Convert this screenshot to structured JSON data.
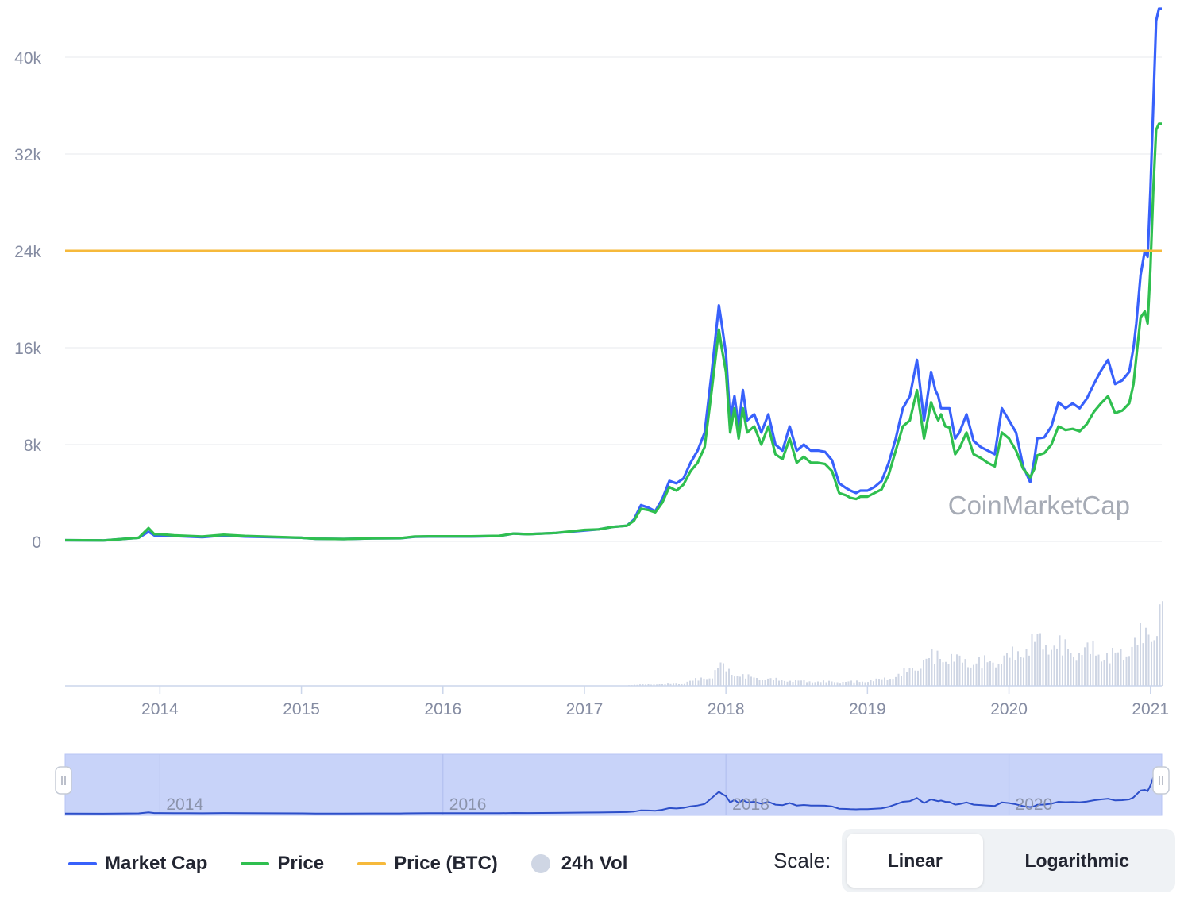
{
  "watermark": "CoinMarketCap",
  "legend": [
    {
      "label": "Market Cap",
      "color": "#3861fb",
      "kind": "line"
    },
    {
      "label": "Price",
      "color": "#2fbf4f",
      "kind": "line"
    },
    {
      "label": "Price (BTC)",
      "color": "#f6b93b",
      "kind": "line"
    },
    {
      "label": "24h Vol",
      "color": "#cfd6e4",
      "kind": "dot"
    }
  ],
  "scale": {
    "label": "Scale:",
    "options": [
      "Linear",
      "Logarithmic"
    ],
    "selected": "Linear"
  },
  "colors": {
    "market_cap": "#3861fb",
    "price": "#2fbf4f",
    "price_btc": "#f6b93b",
    "volume": "#cfd6e4",
    "navigator_fill": "#c8d3f9",
    "navigator_line": "#2d4fc9",
    "grid": "#eceef1",
    "axis_text": "#858ca2"
  },
  "chart_data": {
    "type": "line",
    "title": "",
    "xlabel": "",
    "ylabel": "",
    "xlim": [
      2013.33,
      2021.08
    ],
    "ylim": [
      0,
      40000
    ],
    "y_ticks": [
      "0",
      "8k",
      "16k",
      "24k",
      "32k",
      "40k"
    ],
    "y_tick_values": [
      0,
      8000,
      16000,
      24000,
      32000,
      40000
    ],
    "x_ticks": [
      "2014",
      "2015",
      "2016",
      "2017",
      "2018",
      "2019",
      "2020",
      "2021"
    ],
    "navigator_x_ticks": [
      "2014",
      "2016",
      "2018",
      "2020"
    ],
    "grid": true,
    "legend_position": "bottom",
    "series": [
      {
        "name": "Market Cap",
        "x": [
          2013.33,
          2013.6,
          2013.85,
          2013.92,
          2013.96,
          2014.0,
          2014.1,
          2014.2,
          2014.3,
          2014.45,
          2014.6,
          2014.8,
          2015.0,
          2015.1,
          2015.3,
          2015.5,
          2015.7,
          2015.8,
          2015.9,
          2016.0,
          2016.2,
          2016.4,
          2016.5,
          2016.6,
          2016.8,
          2017.0,
          2017.1,
          2017.2,
          2017.3,
          2017.35,
          2017.4,
          2017.45,
          2017.5,
          2017.55,
          2017.6,
          2017.65,
          2017.7,
          2017.75,
          2017.8,
          2017.85,
          2017.9,
          2017.95,
          2017.97,
          2018.0,
          2018.03,
          2018.06,
          2018.09,
          2018.12,
          2018.15,
          2018.2,
          2018.25,
          2018.3,
          2018.35,
          2018.4,
          2018.45,
          2018.5,
          2018.55,
          2018.6,
          2018.65,
          2018.7,
          2018.75,
          2018.8,
          2018.85,
          2018.88,
          2018.92,
          2018.95,
          2019.0,
          2019.05,
          2019.1,
          2019.15,
          2019.2,
          2019.25,
          2019.3,
          2019.35,
          2019.4,
          2019.45,
          2019.48,
          2019.5,
          2019.52,
          2019.55,
          2019.58,
          2019.62,
          2019.65,
          2019.7,
          2019.75,
          2019.8,
          2019.85,
          2019.9,
          2019.95,
          2020.0,
          2020.05,
          2020.1,
          2020.15,
          2020.18,
          2020.2,
          2020.25,
          2020.3,
          2020.35,
          2020.4,
          2020.45,
          2020.5,
          2020.55,
          2020.6,
          2020.65,
          2020.7,
          2020.75,
          2020.8,
          2020.85,
          2020.88,
          2020.9,
          2020.93,
          2020.96,
          2020.98,
          2021.0,
          2021.02,
          2021.04,
          2021.06,
          2021.08
        ],
        "values": [
          100,
          80,
          300,
          800,
          500,
          500,
          450,
          400,
          350,
          500,
          400,
          350,
          300,
          220,
          200,
          250,
          260,
          380,
          400,
          400,
          400,
          450,
          650,
          600,
          700,
          900,
          1000,
          1200,
          1300,
          1800,
          3000,
          2800,
          2500,
          3500,
          5000,
          4800,
          5200,
          6500,
          7500,
          9000,
          14000,
          19500,
          18000,
          15500,
          10000,
          12000,
          9500,
          12500,
          10000,
          10500,
          9000,
          10500,
          8000,
          7500,
          9500,
          7500,
          8000,
          7500,
          7500,
          7400,
          6700,
          4800,
          4400,
          4200,
          4000,
          4200,
          4200,
          4500,
          5000,
          6500,
          8500,
          11000,
          12000,
          15000,
          10000,
          14000,
          12500,
          12000,
          11000,
          11000,
          11000,
          8500,
          9000,
          10500,
          8300,
          7800,
          7500,
          7200,
          11000,
          10000,
          9000,
          6200,
          4900,
          6800,
          8500,
          8600,
          9500,
          11500,
          11000,
          11400,
          11000,
          11800,
          13000,
          14100,
          15000,
          13000,
          13300,
          14000,
          16000,
          18000,
          22000,
          24000,
          23500,
          29000,
          36000,
          43000,
          44000,
          44000
        ]
      },
      {
        "name": "Price",
        "x": [
          2013.33,
          2013.6,
          2013.85,
          2013.92,
          2013.96,
          2014.0,
          2014.1,
          2014.2,
          2014.3,
          2014.45,
          2014.6,
          2014.8,
          2015.0,
          2015.1,
          2015.3,
          2015.5,
          2015.7,
          2015.8,
          2015.9,
          2016.0,
          2016.2,
          2016.4,
          2016.5,
          2016.6,
          2016.8,
          2017.0,
          2017.1,
          2017.2,
          2017.3,
          2017.35,
          2017.4,
          2017.45,
          2017.5,
          2017.55,
          2017.6,
          2017.65,
          2017.7,
          2017.75,
          2017.8,
          2017.85,
          2017.9,
          2017.95,
          2017.97,
          2018.0,
          2018.03,
          2018.06,
          2018.09,
          2018.12,
          2018.15,
          2018.2,
          2018.25,
          2018.3,
          2018.35,
          2018.4,
          2018.45,
          2018.5,
          2018.55,
          2018.6,
          2018.65,
          2018.7,
          2018.75,
          2018.8,
          2018.85,
          2018.88,
          2018.92,
          2018.95,
          2019.0,
          2019.05,
          2019.1,
          2019.15,
          2019.2,
          2019.25,
          2019.3,
          2019.35,
          2019.4,
          2019.45,
          2019.48,
          2019.5,
          2019.52,
          2019.55,
          2019.58,
          2019.62,
          2019.65,
          2019.7,
          2019.75,
          2019.8,
          2019.85,
          2019.9,
          2019.95,
          2020.0,
          2020.05,
          2020.1,
          2020.15,
          2020.18,
          2020.2,
          2020.25,
          2020.3,
          2020.35,
          2020.4,
          2020.45,
          2020.5,
          2020.55,
          2020.6,
          2020.65,
          2020.7,
          2020.75,
          2020.8,
          2020.85,
          2020.88,
          2020.9,
          2020.93,
          2020.96,
          2020.98,
          2021.0,
          2021.02,
          2021.04,
          2021.06,
          2021.08
        ],
        "values": [
          100,
          80,
          300,
          1100,
          600,
          600,
          500,
          450,
          400,
          550,
          450,
          380,
          300,
          220,
          200,
          250,
          270,
          400,
          420,
          420,
          420,
          460,
          650,
          600,
          700,
          950,
          1000,
          1200,
          1300,
          1700,
          2700,
          2600,
          2400,
          3200,
          4500,
          4200,
          4700,
          5800,
          6500,
          7800,
          12500,
          17500,
          16000,
          14000,
          9000,
          11000,
          8500,
          11000,
          9000,
          9500,
          8000,
          9500,
          7200,
          6800,
          8500,
          6500,
          7000,
          6500,
          6500,
          6400,
          5800,
          4000,
          3800,
          3600,
          3500,
          3700,
          3700,
          4000,
          4300,
          5500,
          7500,
          9500,
          10000,
          12500,
          8500,
          11500,
          10500,
          10000,
          10500,
          9500,
          9400,
          7200,
          7700,
          9000,
          7200,
          6900,
          6500,
          6200,
          9000,
          8500,
          7500,
          6000,
          5300,
          6000,
          7100,
          7300,
          8000,
          9500,
          9200,
          9300,
          9100,
          9700,
          10700,
          11400,
          12000,
          10600,
          10800,
          11400,
          13000,
          15200,
          18500,
          19000,
          18000,
          22500,
          29000,
          34000,
          34500,
          34500
        ]
      },
      {
        "name": "Price (BTC)",
        "x": [
          2013.33,
          2021.08
        ],
        "values": [
          24000,
          24000
        ]
      }
    ],
    "volume_series": {
      "name": "24h Vol",
      "note_unit": "relative",
      "x": [
        2017.3,
        2017.5,
        2017.7,
        2017.9,
        2017.95,
        2018.0,
        2018.1,
        2018.3,
        2018.5,
        2018.7,
        2018.9,
        2019.0,
        2019.1,
        2019.2,
        2019.3,
        2019.4,
        2019.5,
        2019.6,
        2019.7,
        2019.8,
        2019.9,
        2020.0,
        2020.1,
        2020.2,
        2020.3,
        2020.4,
        2020.5,
        2020.6,
        2020.7,
        2020.8,
        2020.9,
        2021.0,
        2021.05,
        2021.08
      ],
      "values": [
        0.01,
        0.02,
        0.04,
        0.12,
        0.25,
        0.2,
        0.12,
        0.08,
        0.06,
        0.05,
        0.05,
        0.06,
        0.08,
        0.12,
        0.2,
        0.3,
        0.38,
        0.32,
        0.3,
        0.28,
        0.3,
        0.35,
        0.45,
        0.55,
        0.5,
        0.45,
        0.4,
        0.45,
        0.35,
        0.4,
        0.55,
        0.65,
        0.85,
        1.0
      ]
    }
  }
}
